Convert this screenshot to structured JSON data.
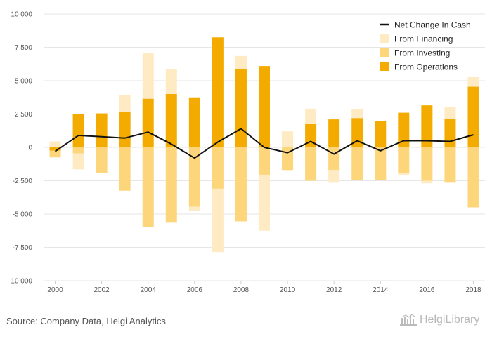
{
  "chart_data": {
    "type": "bar",
    "stacked": true,
    "categories": [
      "2000",
      "2001",
      "2002",
      "2003",
      "2004",
      "2005",
      "2006",
      "2007",
      "2008",
      "2009",
      "2010",
      "2011",
      "2012",
      "2013",
      "2014",
      "2015",
      "2016",
      "2017",
      "2018"
    ],
    "x_tick_labels": [
      "2000",
      "2002",
      "2004",
      "2006",
      "2008",
      "2010",
      "2012",
      "2014",
      "2016",
      "2018"
    ],
    "ylim": [
      -10000,
      10000
    ],
    "y_ticks": [
      -10000,
      -7500,
      -5000,
      -2500,
      0,
      2500,
      5000,
      7500,
      10000
    ],
    "y_tick_labels": [
      "-10 000",
      "-7 500",
      "-5 000",
      "-2 500",
      "0",
      "2 500",
      "5 000",
      "7 500",
      "10 000"
    ],
    "grid": "horizontal",
    "legend_position": "top-right",
    "series": [
      {
        "name": "From Operations",
        "type": "bar",
        "color": "#F4AB00",
        "values": [
          -250,
          2500,
          2550,
          2650,
          3650,
          4000,
          3750,
          8250,
          5850,
          6100,
          0,
          1750,
          2100,
          2200,
          2000,
          2600,
          3150,
          2150,
          4550
        ]
      },
      {
        "name": "From Investing",
        "type": "bar",
        "color": "#FDD67C",
        "values": [
          -500,
          -450,
          -1900,
          -3250,
          -5950,
          -5650,
          -4450,
          -3100,
          -5550,
          -2050,
          -1700,
          -2500,
          -1700,
          -2450,
          -2450,
          -1950,
          -2500,
          -2650,
          -4500
        ]
      },
      {
        "name": "From Financing",
        "type": "bar",
        "color": "#FFEBC3",
        "values": [
          450,
          -1200,
          0,
          1250,
          3400,
          1850,
          -300,
          -4750,
          1000,
          -4200,
          1200,
          1150,
          -950,
          650,
          0,
          -150,
          -200,
          850,
          750
        ]
      },
      {
        "name": "Net Change In Cash",
        "type": "line",
        "color": "#111111",
        "values": [
          -300,
          900,
          800,
          700,
          1150,
          250,
          -800,
          400,
          1400,
          0,
          -400,
          450,
          -500,
          500,
          -250,
          500,
          500,
          450,
          950
        ]
      }
    ],
    "legend": [
      "Net Change In Cash",
      "From Financing",
      "From Investing",
      "From Operations"
    ]
  },
  "source": "Source: Company Data, Helgi Analytics",
  "logo_text": "HelgiLibrary"
}
